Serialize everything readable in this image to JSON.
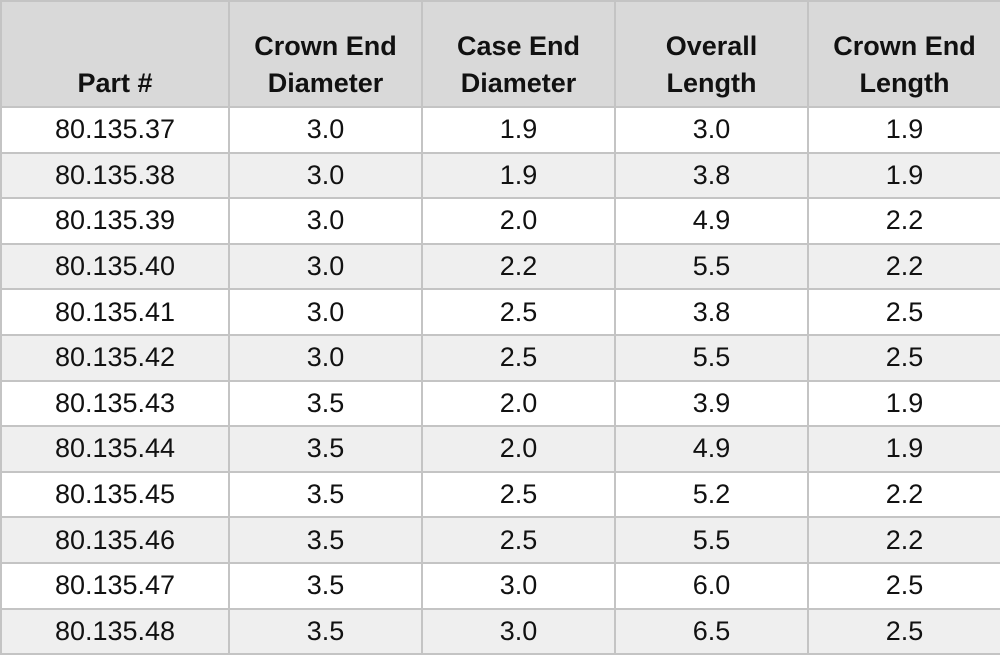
{
  "table": {
    "headers": [
      [
        "Part #"
      ],
      [
        "Crown End",
        "Diameter"
      ],
      [
        "Case End",
        "Diameter"
      ],
      [
        "Overall",
        "Length"
      ],
      [
        "Crown End",
        "Length"
      ]
    ],
    "rows": [
      [
        "80.135.37",
        "3.0",
        "1.9",
        "3.0",
        "1.9"
      ],
      [
        "80.135.38",
        "3.0",
        "1.9",
        "3.8",
        "1.9"
      ],
      [
        "80.135.39",
        "3.0",
        "2.0",
        "4.9",
        "2.2"
      ],
      [
        "80.135.40",
        "3.0",
        "2.2",
        "5.5",
        "2.2"
      ],
      [
        "80.135.41",
        "3.0",
        "2.5",
        "3.8",
        "2.5"
      ],
      [
        "80.135.42",
        "3.0",
        "2.5",
        "5.5",
        "2.5"
      ],
      [
        "80.135.43",
        "3.5",
        "2.0",
        "3.9",
        "1.9"
      ],
      [
        "80.135.44",
        "3.5",
        "2.0",
        "4.9",
        "1.9"
      ],
      [
        "80.135.45",
        "3.5",
        "2.5",
        "5.2",
        "2.2"
      ],
      [
        "80.135.46",
        "3.5",
        "2.5",
        "5.5",
        "2.2"
      ],
      [
        "80.135.47",
        "3.5",
        "3.0",
        "6.0",
        "2.5"
      ],
      [
        "80.135.48",
        "3.5",
        "3.0",
        "6.5",
        "2.5"
      ]
    ]
  },
  "colors": {
    "header_bg": "#d9d9d9",
    "row_alt_bg": "#efefef",
    "row_bg": "#ffffff",
    "grid": "#c4c4c4"
  }
}
